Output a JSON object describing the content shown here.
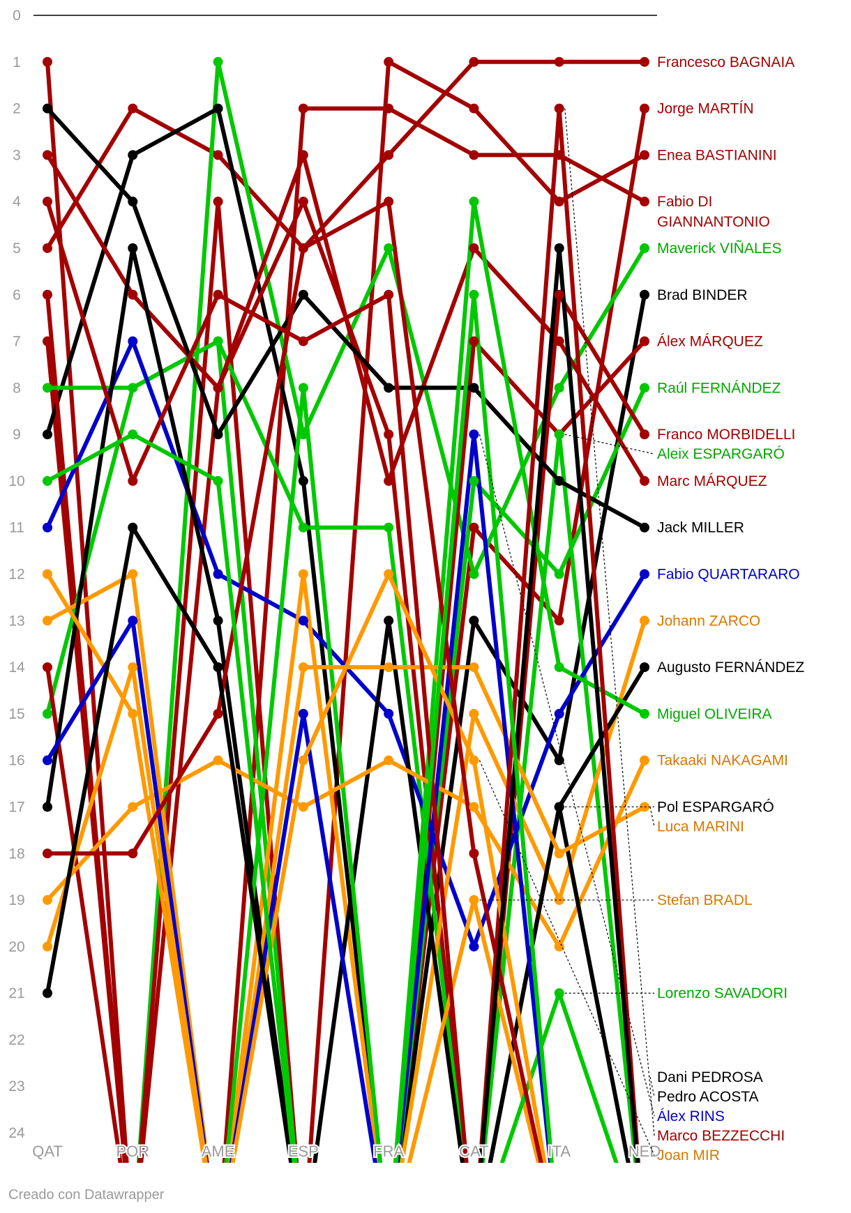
{
  "chart_data": {
    "type": "line",
    "categories": [
      "QAT",
      "POR",
      "AME",
      "ESP",
      "FRA",
      "CAT",
      "ITA",
      "NED"
    ],
    "y_ticks": [
      0,
      1,
      2,
      3,
      4,
      5,
      6,
      7,
      8,
      9,
      10,
      11,
      12,
      13,
      14,
      15,
      16,
      17,
      18,
      19,
      20,
      21,
      22,
      23,
      24
    ],
    "ylim": [
      0,
      24
    ],
    "y_reversed": true,
    "grid": false,
    "series": [
      {
        "name": "Francesco BAGNAIA",
        "color": "#a30000",
        "values": [
          5,
          2,
          3,
          5,
          3,
          1,
          1,
          1
        ],
        "label_lines": [
          "Francesco BAGNAIA"
        ]
      },
      {
        "name": "Jorge MARTÍN",
        "color": "#a30000",
        "values": [
          7,
          null,
          null,
          null,
          null,
          11,
          13,
          2
        ],
        "label_lines": [
          "Jorge MARTÍN"
        ]
      },
      {
        "name": "Enea BASTIANINI",
        "color": "#a30000",
        "values": [
          1,
          null,
          null,
          null,
          1,
          2,
          4,
          3
        ],
        "label_lines": [
          "Enea BASTIANINI"
        ]
      },
      {
        "name": "Fabio DI GIANNANTONIO",
        "color": "#a30000",
        "values": [
          null,
          null,
          null,
          2,
          2,
          3,
          3,
          4
        ],
        "label_lines": [
          "Fabio DI",
          "GIANNANTONIO"
        ]
      },
      {
        "name": "Maverick VIÑALES",
        "color": "#00c800",
        "values": [
          null,
          null,
          1,
          9,
          5,
          12,
          8,
          5
        ],
        "label_lines": [
          "Maverick VIÑALES"
        ]
      },
      {
        "name": "Brad BINDER",
        "color": "#000000",
        "values": [
          9,
          3,
          2,
          10,
          null,
          13,
          16,
          6
        ],
        "label_lines": [
          "Brad BINDER"
        ]
      },
      {
        "name": "Álex MÁRQUEZ",
        "color": "#a30000",
        "values": [
          6,
          null,
          4,
          null,
          null,
          7,
          9,
          7
        ],
        "label_lines": [
          "Álex MÁRQUEZ"
        ]
      },
      {
        "name": "Raúl FERNÁNDEZ",
        "color": "#00c800",
        "values": [
          15,
          8,
          7,
          null,
          null,
          10,
          12,
          8
        ],
        "label_lines": [
          "Raúl FERNÁNDEZ"
        ]
      },
      {
        "name": "Franco MORBIDELLI",
        "color": "#a30000",
        "values": [
          14,
          null,
          8,
          4,
          9,
          null,
          6,
          9
        ],
        "label_lines": [
          "Franco MORBIDELLI"
        ]
      },
      {
        "name": "Aleix ESPARGARÓ",
        "color": "#00c800",
        "values": [
          8,
          8,
          7,
          11,
          11,
          null,
          9,
          null
        ],
        "label_lines": [
          "Aleix ESPARGARÓ"
        ]
      },
      {
        "name": "Marc MÁRQUEZ",
        "color": "#a30000",
        "values": [
          3,
          6,
          8,
          3,
          10,
          5,
          7,
          10
        ],
        "label_lines": [
          "Marc MÁRQUEZ"
        ]
      },
      {
        "name": "Jack MILLER",
        "color": "#000000",
        "values": [
          2,
          4,
          9,
          6,
          8,
          8,
          10,
          11
        ],
        "label_lines": [
          "Jack MILLER"
        ]
      },
      {
        "name": "Fabio QUARTARARO",
        "color": "#0000cc",
        "values": [
          11,
          7,
          12,
          13,
          15,
          20,
          15,
          12
        ],
        "label_lines": [
          "Fabio QUARTARARO"
        ]
      },
      {
        "name": "Johann ZARCO",
        "color": "#ff9900",
        "values": [
          13,
          12,
          null,
          12,
          null,
          15,
          19,
          13
        ],
        "label_lines": [
          "Johann ZARCO"
        ]
      },
      {
        "name": "Augusto FERNÁNDEZ",
        "color": "#000000",
        "values": [
          17,
          5,
          13,
          null,
          13,
          null,
          17,
          14
        ],
        "label_lines": [
          "Augusto FERNÁNDEZ"
        ]
      },
      {
        "name": "Miguel OLIVEIRA",
        "color": "#00c800",
        "values": [
          null,
          null,
          null,
          8,
          null,
          4,
          14,
          15
        ],
        "label_lines": [
          "Miguel OLIVEIRA"
        ]
      },
      {
        "name": "Takaaki NAKAGAMI",
        "color": "#ff9900",
        "values": [
          19,
          17,
          16,
          17,
          16,
          17,
          20,
          16
        ],
        "label_lines": [
          "Takaaki NAKAGAMI"
        ]
      },
      {
        "name": "Pol ESPARGARÓ",
        "color": "#000000",
        "values": [
          null,
          null,
          null,
          null,
          null,
          null,
          17,
          null
        ],
        "label_lines": [
          "Pol ESPARGARÓ"
        ]
      },
      {
        "name": "Luca MARINI",
        "color": "#ff9900",
        "values": [
          12,
          15,
          null,
          14,
          14,
          14,
          18,
          17
        ],
        "label_lines": [
          "Luca MARINI"
        ]
      },
      {
        "name": "Stefan BRADL",
        "color": "#ff9900",
        "values": [
          null,
          null,
          null,
          null,
          null,
          19,
          null,
          null
        ],
        "label_lines": [
          "Stefan BRADL"
        ]
      },
      {
        "name": "Lorenzo SAVADORI",
        "color": "#00c800",
        "values": [
          null,
          null,
          null,
          null,
          null,
          null,
          21,
          null
        ],
        "label_lines": [
          "Lorenzo SAVADORI"
        ]
      },
      {
        "name": "Dani PEDROSA",
        "color": "#000000",
        "values": [
          null,
          null,
          null,
          null,
          null,
          null,
          null,
          null
        ],
        "label_lines": [
          "Dani PEDROSA"
        ]
      },
      {
        "name": "Pedro ACOSTA",
        "color": "#000000",
        "values": [
          null,
          null,
          null,
          null,
          null,
          null,
          null,
          null
        ],
        "label_lines": [
          "Pedro ACOSTA"
        ]
      },
      {
        "name": "Álex RINS",
        "color": "#0000cc",
        "values": [
          16,
          13,
          null,
          15,
          null,
          9,
          null,
          null
        ],
        "label_lines": [
          "Álex RINS"
        ]
      },
      {
        "name": "Marco BEZZECCHI",
        "color": "#a30000",
        "values": [
          4,
          10,
          6,
          7,
          6,
          null,
          2,
          null
        ],
        "label_lines": [
          "Marco BEZZECCHI"
        ]
      },
      {
        "name": "Joan MIR",
        "color": "#ff9900",
        "values": [
          20,
          14,
          null,
          16,
          12,
          16,
          null,
          null
        ],
        "label_lines": [
          "Joan MIR"
        ]
      },
      {
        "name": "",
        "color": "#a30000",
        "values": [
          18,
          18,
          15,
          5,
          4,
          18,
          null,
          null
        ],
        "label_lines": []
      },
      {
        "name": "",
        "color": "#000000",
        "values": [
          21,
          11,
          14,
          null,
          null,
          null,
          5,
          null
        ],
        "label_lines": []
      },
      {
        "name": "",
        "color": "#00c800",
        "values": [
          10,
          9,
          10,
          null,
          null,
          6,
          null,
          null
        ],
        "label_lines": []
      }
    ]
  },
  "footer": {
    "credit": "Creado con Datawrapper"
  }
}
